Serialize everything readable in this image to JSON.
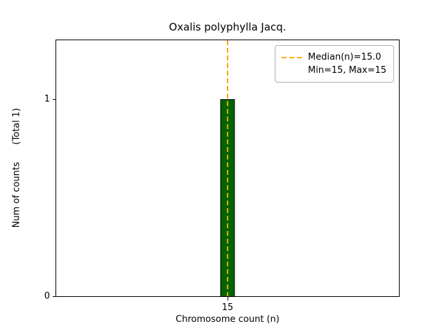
{
  "chart_data": {
    "type": "bar",
    "title": "Oxalis polyphylla Jacq.",
    "xlabel": "Chromosome count (n)",
    "ylabel": "Num of counts      (Total 1)",
    "categories": [
      "15"
    ],
    "values": [
      1
    ],
    "ylim": [
      0,
      1.3
    ],
    "yticks": [
      0,
      1
    ],
    "ytick_labels": [
      "0",
      "1"
    ],
    "xtick_labels": [
      "15"
    ],
    "bar_color": "#006400",
    "bar_edge_color": "#000000",
    "median_line": {
      "x": 15,
      "style": "dashed",
      "color": "#FFA500",
      "label": "Median(n)=15.0"
    },
    "legend": {
      "position": "upper right",
      "entries": [
        "Median(n)=15.0",
        "Min=15, Max=15"
      ]
    },
    "grid": false,
    "total_counts": 1
  }
}
